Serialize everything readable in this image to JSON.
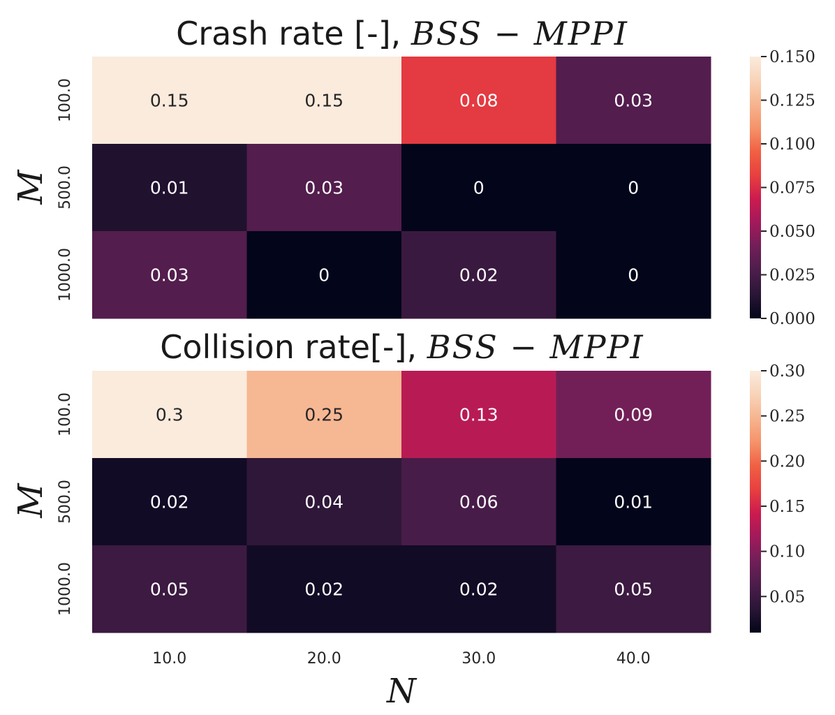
{
  "chart_data": [
    {
      "type": "heatmap",
      "title": "Crash rate [-], ",
      "title_math": "BSS − MPPI",
      "ylabel": "M",
      "xlabel": "",
      "rows": [
        "100.0",
        "500.0",
        "1000.0"
      ],
      "columns": [
        "10.0",
        "20.0",
        "30.0",
        "40.0"
      ],
      "values": [
        [
          0.15,
          0.15,
          0.08,
          0.03
        ],
        [
          0.01,
          0.03,
          0,
          0
        ],
        [
          0.03,
          0,
          0.02,
          0
        ]
      ],
      "annotations": [
        [
          "0.15",
          "0.15",
          "0.08",
          "0.03"
        ],
        [
          "0.01",
          "0.03",
          "0",
          "0"
        ],
        [
          "0.03",
          "0",
          "0.02",
          "0"
        ]
      ],
      "colorbar": {
        "range": [
          0.0,
          0.15
        ],
        "ticks": [
          0.0,
          0.025,
          0.05,
          0.075,
          0.1,
          0.125,
          0.15
        ],
        "tick_labels": [
          "0.000",
          "0.025",
          "0.050",
          "0.075",
          "0.100",
          "0.125",
          "0.150"
        ]
      },
      "colormap": "rocket"
    },
    {
      "type": "heatmap",
      "title": "Collision rate[-], ",
      "title_math": "BSS − MPPI",
      "ylabel": "M",
      "xlabel": "N",
      "rows": [
        "100.0",
        "500.0",
        "1000.0"
      ],
      "columns": [
        "10.0",
        "20.0",
        "30.0",
        "40.0"
      ],
      "values": [
        [
          0.3,
          0.25,
          0.13,
          0.09
        ],
        [
          0.02,
          0.04,
          0.06,
          0.01
        ],
        [
          0.05,
          0.02,
          0.02,
          0.05
        ]
      ],
      "annotations": [
        [
          "0.3",
          "0.25",
          "0.13",
          "0.09"
        ],
        [
          "0.02",
          "0.04",
          "0.06",
          "0.01"
        ],
        [
          "0.05",
          "0.02",
          "0.02",
          "0.05"
        ]
      ],
      "colorbar": {
        "range": [
          0.01,
          0.3
        ],
        "ticks": [
          0.05,
          0.1,
          0.15,
          0.2,
          0.25,
          0.3
        ],
        "tick_labels": [
          "0.05",
          "0.10",
          "0.15",
          "0.20",
          "0.25",
          "0.30"
        ]
      },
      "colormap": "rocket"
    }
  ],
  "colors": {
    "rocket": [
      "#03051a",
      "#2a1636",
      "#4c1d4b",
      "#701f57",
      "#a11a5b",
      "#cb1b4f",
      "#e83f3f",
      "#f06043",
      "#f5936a",
      "#f6b48f",
      "#f8d3b8",
      "#faebdd"
    ]
  }
}
